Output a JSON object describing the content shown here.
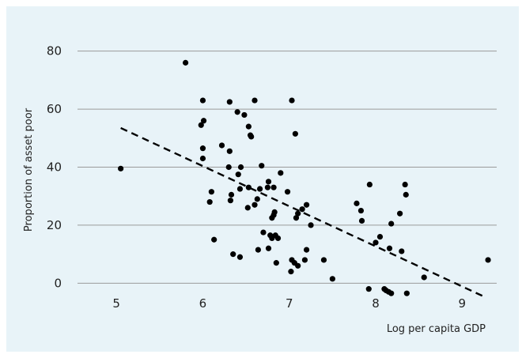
{
  "chart_data": {
    "type": "scatter",
    "title": "",
    "xlabel": "Log per capita GDP",
    "ylabel": "Proportion of asset poor",
    "xlim": [
      4.55,
      9.4
    ],
    "ylim": [
      -4,
      84
    ],
    "xticks": [
      5,
      6,
      7,
      8,
      9
    ],
    "xtick_labels": [
      "5",
      "6",
      "7",
      "8",
      "9"
    ],
    "yticks": [
      0,
      20,
      40,
      60,
      80
    ],
    "ytick_labels": [
      "0",
      "20",
      "40",
      "60",
      "80"
    ],
    "grid": "horizontal",
    "colors": {
      "background": "#e8f3f8",
      "points": "#000000",
      "trend": "#000000",
      "grid": "#9a9a9a"
    },
    "trend_line": {
      "style": "dashed",
      "x": [
        5.05,
        9.28
      ],
      "y": [
        53.5,
        -5
      ]
    },
    "points": [
      [
        5.05,
        39.5
      ],
      [
        5.8,
        76
      ],
      [
        6.0,
        63
      ],
      [
        5.98,
        54.5
      ],
      [
        6.01,
        56
      ],
      [
        6.0,
        46.5
      ],
      [
        6.0,
        43
      ],
      [
        6.08,
        28
      ],
      [
        6.1,
        31.5
      ],
      [
        6.13,
        15
      ],
      [
        6.22,
        47.5
      ],
      [
        6.31,
        62.5
      ],
      [
        6.31,
        45.5
      ],
      [
        6.3,
        40
      ],
      [
        6.33,
        30.5
      ],
      [
        6.32,
        28.5
      ],
      [
        6.35,
        10
      ],
      [
        6.41,
        37.5
      ],
      [
        6.4,
        59
      ],
      [
        6.44,
        40
      ],
      [
        6.43,
        32.5
      ],
      [
        6.43,
        9
      ],
      [
        6.48,
        58
      ],
      [
        6.53,
        54
      ],
      [
        6.55,
        51
      ],
      [
        6.56,
        50.5
      ],
      [
        6.52,
        26
      ],
      [
        6.53,
        33
      ],
      [
        6.6,
        63
      ],
      [
        6.6,
        27
      ],
      [
        6.63,
        29
      ],
      [
        6.66,
        32.5
      ],
      [
        6.68,
        40.5
      ],
      [
        6.64,
        11.5
      ],
      [
        6.7,
        17.5
      ],
      [
        6.75,
        33
      ],
      [
        6.76,
        35
      ],
      [
        6.78,
        16.5
      ],
      [
        6.76,
        12
      ],
      [
        6.8,
        22.5
      ],
      [
        6.82,
        23.5
      ],
      [
        6.83,
        24.5
      ],
      [
        6.8,
        15.5
      ],
      [
        6.84,
        16.5
      ],
      [
        6.87,
        15.5
      ],
      [
        6.85,
        7
      ],
      [
        6.9,
        38
      ],
      [
        6.82,
        33
      ],
      [
        6.98,
        31.5
      ],
      [
        7.03,
        63
      ],
      [
        7.07,
        51.5
      ],
      [
        7.03,
        8
      ],
      [
        7.02,
        4
      ],
      [
        7.06,
        7
      ],
      [
        7.1,
        6
      ],
      [
        7.08,
        22.5
      ],
      [
        7.1,
        24
      ],
      [
        7.15,
        25.5
      ],
      [
        7.2,
        27
      ],
      [
        7.18,
        8
      ],
      [
        7.2,
        11.5
      ],
      [
        7.25,
        20
      ],
      [
        7.4,
        8
      ],
      [
        7.5,
        1.5
      ],
      [
        7.78,
        27.5
      ],
      [
        7.83,
        25
      ],
      [
        7.84,
        21.5
      ],
      [
        7.92,
        -2
      ],
      [
        7.93,
        34
      ],
      [
        8.0,
        14
      ],
      [
        8.05,
        16
      ],
      [
        8.1,
        -2
      ],
      [
        8.12,
        -2.5
      ],
      [
        8.15,
        -3
      ],
      [
        8.18,
        -3.5
      ],
      [
        8.16,
        12
      ],
      [
        8.18,
        20.5
      ],
      [
        8.28,
        24
      ],
      [
        8.3,
        11
      ],
      [
        8.34,
        34
      ],
      [
        8.35,
        30.5
      ],
      [
        8.36,
        -3.5
      ],
      [
        8.56,
        2
      ],
      [
        9.3,
        8
      ]
    ]
  }
}
